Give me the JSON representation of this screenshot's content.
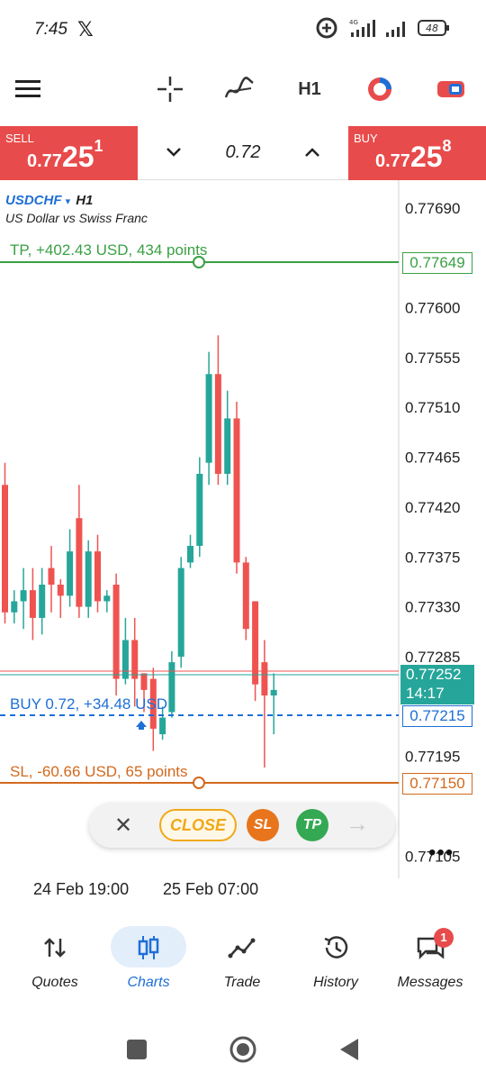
{
  "status_bar": {
    "time": "7:45",
    "x_app_icon": "x-logo-icon",
    "network_label": "4G",
    "battery": "48"
  },
  "toolbar": {
    "menu_icon": "hamburger-menu-icon",
    "crosshair_icon": "crosshair-icon",
    "indicators_icon": "indicators-icon",
    "timeframe": "H1",
    "objects_icon": "clock-pie-icon",
    "one_click_icon": "one-click-trading-icon"
  },
  "trade_bar": {
    "sell_label": "SELL",
    "sell_price_prefix": "0.77",
    "sell_price_big": "25",
    "sell_price_sup": "1",
    "lot": "0.72",
    "buy_label": "BUY",
    "buy_price_prefix": "0.77",
    "buy_price_big": "25",
    "buy_price_sup": "8"
  },
  "chart": {
    "symbol": "USDCHF",
    "symbol_dropdown": "▾",
    "timeframe": "H1",
    "description": "US Dollar vs Swiss Franc",
    "tp_label": "TP, +402.43 USD, 434 points",
    "tp_price": "0.77649",
    "buy_label": "BUY 0.72,   +34.48 USD",
    "buy_price": "0.77215",
    "sl_label": "SL, -60.66 USD, 65 points",
    "sl_price": "0.77150",
    "bid_price": "0.77252",
    "bar_timer": "14:17",
    "price_labels": [
      "0.77690",
      "0.77600",
      "0.77555",
      "0.77510",
      "0.77465",
      "0.77420",
      "0.77375",
      "0.77330",
      "0.77285",
      "0.77195",
      "0.77105"
    ],
    "time_labels": [
      "24 Feb 19:00",
      "25 Feb 07:00"
    ],
    "more_label": "•••",
    "colors": {
      "bull": "#26a69a",
      "bear": "#ef5350",
      "tp": "#3aa043",
      "sl": "#d2691e",
      "buy_line": "#1e6fd6"
    }
  },
  "chart_data": {
    "type": "candlestick",
    "ylim": [
      0.77085,
      0.77715
    ],
    "candles": [
      {
        "o": 0.7744,
        "h": 0.7746,
        "l": 0.77315,
        "c": 0.77325
      },
      {
        "o": 0.77325,
        "h": 0.77345,
        "l": 0.77315,
        "c": 0.77335
      },
      {
        "o": 0.77335,
        "h": 0.77365,
        "l": 0.7731,
        "c": 0.77345
      },
      {
        "o": 0.77345,
        "h": 0.77365,
        "l": 0.773,
        "c": 0.7732
      },
      {
        "o": 0.7732,
        "h": 0.77365,
        "l": 0.77305,
        "c": 0.7735
      },
      {
        "o": 0.77365,
        "h": 0.77385,
        "l": 0.77325,
        "c": 0.7735
      },
      {
        "o": 0.7735,
        "h": 0.77355,
        "l": 0.7732,
        "c": 0.7734
      },
      {
        "o": 0.7734,
        "h": 0.774,
        "l": 0.7733,
        "c": 0.7738
      },
      {
        "o": 0.7741,
        "h": 0.7744,
        "l": 0.7732,
        "c": 0.7733
      },
      {
        "o": 0.7733,
        "h": 0.7739,
        "l": 0.7732,
        "c": 0.7738
      },
      {
        "o": 0.7738,
        "h": 0.77395,
        "l": 0.77325,
        "c": 0.77335
      },
      {
        "o": 0.77335,
        "h": 0.77345,
        "l": 0.77325,
        "c": 0.7734
      },
      {
        "o": 0.7735,
        "h": 0.7736,
        "l": 0.7725,
        "c": 0.77265
      },
      {
        "o": 0.77265,
        "h": 0.7732,
        "l": 0.7726,
        "c": 0.773
      },
      {
        "o": 0.773,
        "h": 0.7732,
        "l": 0.7724,
        "c": 0.77265
      },
      {
        "o": 0.7727,
        "h": 0.7727,
        "l": 0.77235,
        "c": 0.77255
      },
      {
        "o": 0.77265,
        "h": 0.77275,
        "l": 0.772,
        "c": 0.7722
      },
      {
        "o": 0.77215,
        "h": 0.7724,
        "l": 0.7721,
        "c": 0.7723
      },
      {
        "o": 0.77235,
        "h": 0.7729,
        "l": 0.7723,
        "c": 0.7728
      },
      {
        "o": 0.77285,
        "h": 0.77375,
        "l": 0.77275,
        "c": 0.77365
      },
      {
        "o": 0.7737,
        "h": 0.77395,
        "l": 0.77365,
        "c": 0.77385
      },
      {
        "o": 0.77385,
        "h": 0.77465,
        "l": 0.77375,
        "c": 0.7745
      },
      {
        "o": 0.7746,
        "h": 0.7756,
        "l": 0.7744,
        "c": 0.7754
      },
      {
        "o": 0.7754,
        "h": 0.77575,
        "l": 0.7744,
        "c": 0.7745
      },
      {
        "o": 0.7745,
        "h": 0.77525,
        "l": 0.7744,
        "c": 0.775
      },
      {
        "o": 0.775,
        "h": 0.77515,
        "l": 0.7736,
        "c": 0.7737
      },
      {
        "o": 0.7737,
        "h": 0.77375,
        "l": 0.773,
        "c": 0.7731
      },
      {
        "o": 0.77335,
        "h": 0.77335,
        "l": 0.77245,
        "c": 0.7726
      },
      {
        "o": 0.7728,
        "h": 0.773,
        "l": 0.77185,
        "c": 0.7725
      },
      {
        "o": 0.7725,
        "h": 0.7727,
        "l": 0.77215,
        "c": 0.77255
      }
    ]
  },
  "action_pill": {
    "close_x": "✕",
    "close_label": "CLOSE",
    "sl_label": "SL",
    "tp_label": "TP",
    "next_arrow": "→"
  },
  "bottom_nav": {
    "items": [
      {
        "label": "Quotes",
        "icon": "quotes-arrows-icon"
      },
      {
        "label": "Charts",
        "icon": "candlestick-chart-icon"
      },
      {
        "label": "Trade",
        "icon": "trade-line-icon"
      },
      {
        "label": "History",
        "icon": "history-clock-icon"
      },
      {
        "label": "Messages",
        "icon": "messages-chat-icon"
      }
    ],
    "active": "Charts",
    "messages_badge": "1"
  }
}
